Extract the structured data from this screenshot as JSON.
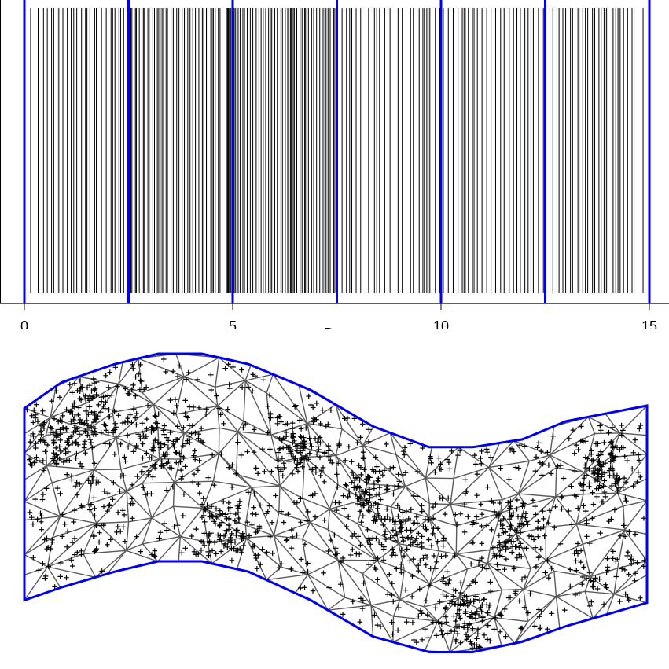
{
  "chart_data": [
    {
      "type": "rug",
      "title": "",
      "xlabel": "Day",
      "ylabel": "",
      "xlim": [
        0,
        15.4
      ],
      "xticks": [
        0,
        5,
        10,
        15
      ],
      "xtick_labels": [
        "0",
        "5",
        "10",
        "15"
      ],
      "time_block_boundaries": [
        0,
        2.5,
        5,
        7.5,
        10,
        12.5,
        15
      ],
      "event_time_range": [
        0.15,
        14.95
      ],
      "segments": [
        {
          "from": 0.15,
          "to": 0.55,
          "density": "medium"
        },
        {
          "from": 0.55,
          "to": 2.4,
          "density": "high"
        },
        {
          "from": 2.5,
          "to": 4.7,
          "density": "very-high"
        },
        {
          "from": 4.85,
          "to": 7.5,
          "density": "very-high"
        },
        {
          "from": 7.5,
          "to": 9.6,
          "density": "medium"
        },
        {
          "from": 9.6,
          "to": 10.0,
          "density": "high"
        },
        {
          "from": 10.0,
          "to": 12.5,
          "density": "high"
        },
        {
          "from": 12.5,
          "to": 14.7,
          "density": "high"
        },
        {
          "from": 14.85,
          "to": 14.95,
          "density": "low"
        }
      ],
      "colors": {
        "events": "#000000",
        "boundaries": "#0000ee",
        "axis": "#000000"
      }
    },
    {
      "type": "scatter",
      "title": "",
      "description_kind": "spatial point pattern on a triangulated mesh inside a curved domain",
      "domain_boundary": {
        "top": [
          [
            0,
            0.21
          ],
          [
            0.06,
            0.11
          ],
          [
            0.145,
            0.04
          ],
          [
            0.215,
            0
          ],
          [
            0.285,
            0
          ],
          [
            0.36,
            0.04
          ],
          [
            0.46,
            0.14
          ],
          [
            0.56,
            0.28
          ],
          [
            0.65,
            0.36
          ],
          [
            0.72,
            0.36
          ],
          [
            0.8,
            0.33
          ],
          [
            0.87,
            0.26
          ],
          [
            1.0,
            0.2
          ]
        ],
        "bottom": [
          [
            0,
            0.95
          ],
          [
            0.06,
            0.9
          ],
          [
            0.145,
            0.84
          ],
          [
            0.215,
            0.8
          ],
          [
            0.285,
            0.8
          ],
          [
            0.36,
            0.84
          ],
          [
            0.46,
            0.95
          ],
          [
            0.56,
            1.09
          ],
          [
            0.65,
            1.15
          ],
          [
            0.72,
            1.15
          ],
          [
            0.8,
            1.11
          ],
          [
            0.87,
            1.05
          ],
          [
            1.0,
            0.96
          ]
        ]
      },
      "cluster_centers": [
        [
          0.05,
          0.32
        ],
        [
          0.11,
          0.22
        ],
        [
          0.23,
          0.35
        ],
        [
          0.33,
          0.67
        ],
        [
          0.44,
          0.36
        ],
        [
          0.55,
          0.52
        ],
        [
          0.62,
          0.72
        ],
        [
          0.78,
          0.7
        ],
        [
          0.93,
          0.45
        ],
        [
          0.71,
          1.02
        ]
      ],
      "colors": {
        "points": "#000000",
        "mesh": "#5a5a5a",
        "boundary": "#0000ee"
      }
    }
  ]
}
